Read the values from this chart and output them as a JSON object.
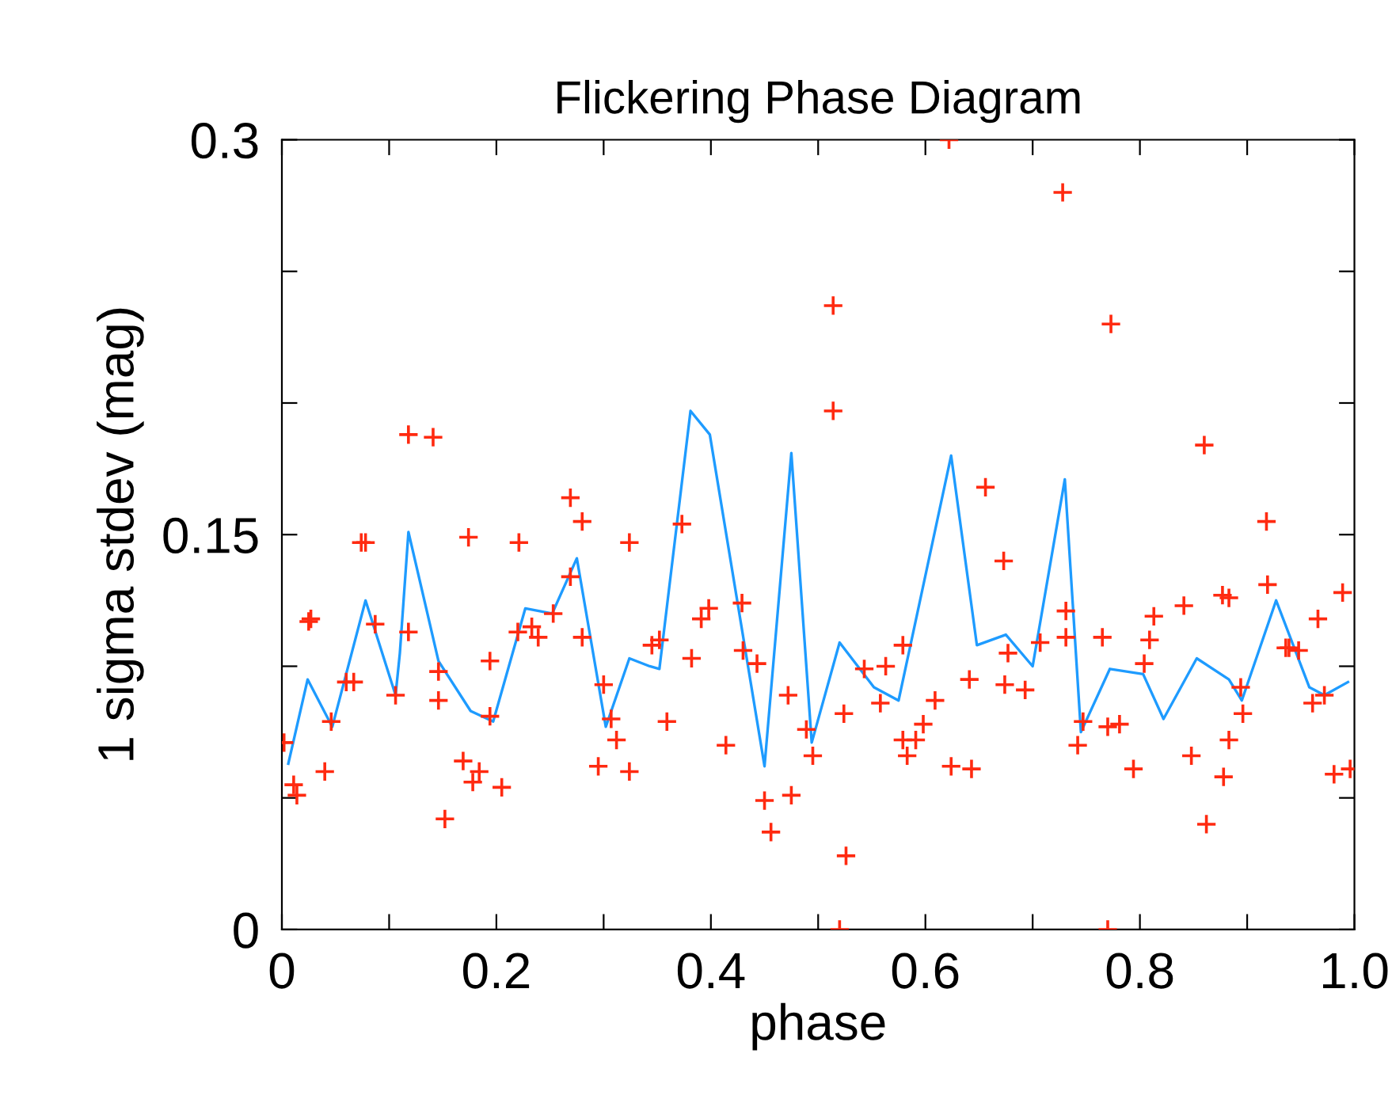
{
  "chart_data": {
    "type": "scatter",
    "title": "Flickering Phase Diagram",
    "xlabel": "phase",
    "ylabel": "1 sigma stdev (mag)",
    "xlim": [
      0,
      1.0
    ],
    "ylim": [
      0,
      0.3
    ],
    "xticks": [
      0,
      {
        "value": 0.1,
        "label": null
      },
      0.2,
      {
        "value": 0.3,
        "label": null
      },
      0.4,
      {
        "value": 0.5,
        "label": null
      },
      0.6,
      {
        "value": 0.7,
        "label": null
      },
      0.8,
      {
        "value": 0.9,
        "label": null
      },
      {
        "value": 1.0,
        "label": "1.0"
      }
    ],
    "yticks": [
      0,
      {
        "value": 0.05,
        "label": null
      },
      {
        "value": 0.1,
        "label": null
      },
      0.15,
      {
        "value": 0.2,
        "label": null
      },
      {
        "value": 0.25,
        "label": null
      },
      0.3
    ],
    "series": [
      {
        "marker": "cross",
        "color": "#ff2a10",
        "x": [
          0.002,
          0.011,
          0.014,
          0.025,
          0.027,
          0.04,
          0.046,
          0.06,
          0.067,
          0.074,
          0.078,
          0.087,
          0.106,
          0.118,
          0.118,
          0.141,
          0.146,
          0.146,
          0.152,
          0.169,
          0.174,
          0.178,
          0.184,
          0.194,
          0.194,
          0.205,
          0.221,
          0.22,
          0.233,
          0.239,
          0.253,
          0.269,
          0.269,
          0.28,
          0.28,
          0.295,
          0.3,
          0.307,
          0.312,
          0.324,
          0.324,
          0.345,
          0.352,
          0.359,
          0.373,
          0.382,
          0.391,
          0.398,
          0.414,
          0.429,
          0.43,
          0.443,
          0.45,
          0.456,
          0.472,
          0.475,
          0.489,
          0.495,
          0.514,
          0.514,
          0.52,
          0.524,
          0.526,
          0.543,
          0.558,
          0.563,
          0.579,
          0.579,
          0.583,
          0.591,
          0.598,
          0.609,
          0.622,
          0.624,
          0.641,
          0.643,
          0.656,
          0.673,
          0.674,
          0.677,
          0.693,
          0.707,
          0.728,
          0.731,
          0.731,
          0.742,
          0.747,
          0.765,
          0.77,
          0.77,
          0.773,
          0.781,
          0.794,
          0.804,
          0.809,
          0.813,
          0.841,
          0.848,
          0.86,
          0.862,
          0.877,
          0.883,
          0.878,
          0.883,
          0.894,
          0.896,
          0.918,
          0.919,
          0.936,
          0.939,
          0.948,
          0.961,
          0.966,
          0.972,
          0.981,
          0.989,
          0.996
        ],
        "values": [
          0.071,
          0.055,
          0.051,
          0.117,
          0.118,
          0.06,
          0.079,
          0.094,
          0.094,
          0.147,
          0.147,
          0.116,
          0.089,
          0.188,
          0.113,
          0.187,
          0.098,
          0.087,
          0.042,
          0.064,
          0.149,
          0.056,
          0.06,
          0.102,
          0.081,
          0.054,
          0.147,
          0.113,
          0.115,
          0.111,
          0.12,
          0.164,
          0.134,
          0.155,
          0.111,
          0.062,
          0.093,
          0.08,
          0.072,
          0.147,
          0.06,
          0.108,
          0.11,
          0.079,
          0.154,
          0.103,
          0.118,
          0.122,
          0.07,
          0.124,
          0.106,
          0.101,
          0.049,
          0.037,
          0.089,
          0.051,
          0.076,
          0.066,
          0.237,
          0.197,
          0.0,
          0.082,
          0.028,
          0.099,
          0.086,
          0.1,
          0.108,
          0.072,
          0.066,
          0.072,
          0.078,
          0.087,
          0.3,
          0.062,
          0.095,
          0.061,
          0.168,
          0.14,
          0.093,
          0.105,
          0.091,
          0.109,
          0.28,
          0.121,
          0.111,
          0.07,
          0.079,
          0.111,
          0.0,
          0.077,
          0.23,
          0.078,
          0.061,
          0.101,
          0.11,
          0.119,
          0.123,
          0.066,
          0.184,
          0.04,
          0.127,
          0.126,
          0.058,
          0.072,
          0.092,
          0.082,
          0.155,
          0.131,
          0.107,
          0.107,
          0.106,
          0.086,
          0.118,
          0.089,
          0.059,
          0.128,
          0.061
        ]
      },
      {
        "type": "line",
        "marker": "none",
        "line_style": "solid",
        "color": "#1e9bff",
        "x": [
          0.006,
          0.024,
          0.047,
          0.078,
          0.106,
          0.11,
          0.118,
          0.146,
          0.176,
          0.197,
          0.227,
          0.252,
          0.275,
          0.302,
          0.324,
          0.343,
          0.352,
          0.381,
          0.399,
          0.45,
          0.475,
          0.494,
          0.52,
          0.552,
          0.575,
          0.624,
          0.648,
          0.675,
          0.7,
          0.73,
          0.745,
          0.772,
          0.803,
          0.822,
          0.853,
          0.883,
          0.895,
          0.927,
          0.958,
          0.972,
          0.994
        ],
        "values": [
          0.063,
          0.095,
          0.077,
          0.125,
          0.089,
          0.105,
          0.151,
          0.102,
          0.083,
          0.079,
          0.122,
          0.12,
          0.141,
          0.077,
          0.103,
          0.1,
          0.099,
          0.197,
          0.188,
          0.062,
          0.181,
          0.071,
          0.109,
          0.092,
          0.087,
          0.18,
          0.108,
          0.112,
          0.1,
          0.171,
          0.075,
          0.099,
          0.097,
          0.08,
          0.103,
          0.095,
          0.087,
          0.125,
          0.092,
          0.089,
          0.094
        ]
      }
    ]
  }
}
